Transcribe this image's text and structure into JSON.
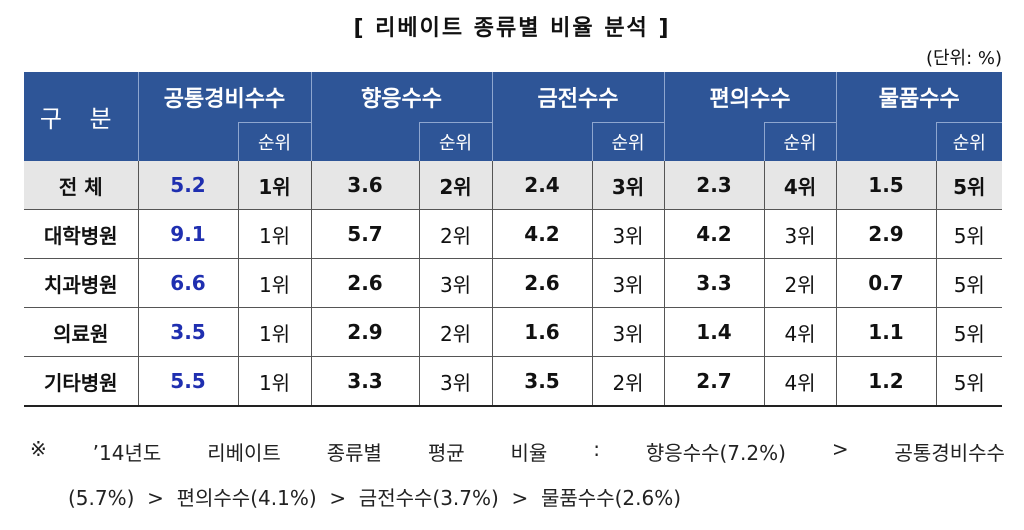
{
  "title": "[ 리베이트 종류별 비율 분석 ]",
  "unit": "(단위: %)",
  "header": {
    "gubun": "구 분",
    "categories": [
      "공통경비수수",
      "향응수수",
      "금전수수",
      "편의수수",
      "물품수수"
    ],
    "rank_label": "순위"
  },
  "rows": [
    {
      "label": "전 체",
      "values": [
        "5.2",
        "3.6",
        "2.4",
        "2.3",
        "1.5"
      ],
      "ranks": [
        "1위",
        "2위",
        "3위",
        "4위",
        "5위"
      ]
    },
    {
      "label": "대학병원",
      "values": [
        "9.1",
        "5.7",
        "4.2",
        "4.2",
        "2.9"
      ],
      "ranks": [
        "1위",
        "2위",
        "3위",
        "3위",
        "5위"
      ]
    },
    {
      "label": "치과병원",
      "values": [
        "6.6",
        "2.6",
        "2.6",
        "3.3",
        "0.7"
      ],
      "ranks": [
        "1위",
        "3위",
        "3위",
        "2위",
        "5위"
      ]
    },
    {
      "label": "의료원",
      "values": [
        "3.5",
        "2.9",
        "1.6",
        "1.4",
        "1.1"
      ],
      "ranks": [
        "1위",
        "2위",
        "3위",
        "4위",
        "5위"
      ]
    },
    {
      "label": "기타병원",
      "values": [
        "5.5",
        "3.3",
        "3.5",
        "2.7",
        "1.2"
      ],
      "ranks": [
        "1위",
        "3위",
        "2위",
        "4위",
        "5위"
      ]
    }
  ],
  "note": {
    "line1_parts": [
      "※",
      "’14년도",
      "리베이트",
      "종류별",
      "평균",
      "비율",
      ":",
      "향응수수(7.2%)",
      ">",
      "공통경비수수"
    ],
    "line2": "(5.7%)  >  편의수수(4.1%)  >  금전수수(3.7%)  >  물품수수(2.6%)"
  }
}
